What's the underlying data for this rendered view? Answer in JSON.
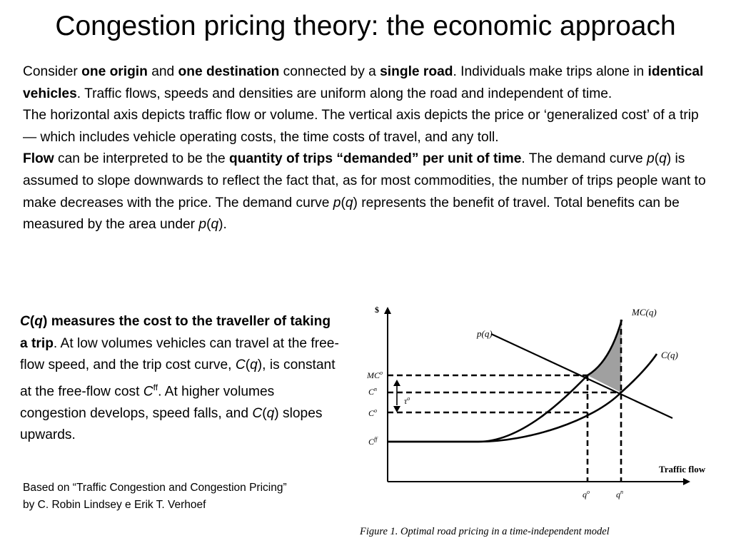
{
  "slide": {
    "title": "Congestion pricing theory: the economic approach",
    "intro": {
      "p1": {
        "t1": "Consider ",
        "b1": "one origin",
        "t2": " and ",
        "b2": "one destination",
        "t3": " connected by a ",
        "b3": "single road",
        "t4": ". Individuals make trips alone in ",
        "b4": "identical vehicles",
        "t5": ". Traffic flows, speeds and densities are uniform along the road and independent of time."
      },
      "p2": "The horizontal axis depicts traffic flow or volume. The vertical axis depicts the price or ‘generalized cost’ of a trip — which includes vehicle operating costs, the time costs of travel, and any toll.",
      "p3": {
        "b1": "Flow",
        "t1": " can be interpreted to be the ",
        "b2": "quantity of trips “demanded” per unit of time",
        "t2": ". The demand curve ",
        "i1": "p",
        "t3": "(",
        "i2": "q",
        "t4": ") is assumed to slope downwards to reflect the fact that, as for most commodities, the number of trips people want to make decreases with the price. The demand curve ",
        "i3": "p",
        "t5": "(",
        "i4": "q",
        "t6": ") represents the benefit of travel. Total benefits can be measured by the area under ",
        "i5": "p",
        "t7": "(",
        "i6": "q",
        "t8": ")."
      }
    },
    "left": {
      "bi1": "C",
      "b1": "(",
      "bi2": "q",
      "b2": ") measures the cost to the traveller of taking a trip",
      "t1": ". At low volumes vehicles can travel at the free-flow speed, and the trip cost curve, ",
      "i1": "C",
      "t2": "(",
      "i2": "q",
      "t3": "), is constant at the free-flow cost ",
      "i3": "C",
      "s1": "ff",
      "t4": ". At higher volumes congestion develops, speed falls, and ",
      "i4": "C",
      "t5": "(",
      "i5": "q",
      "t6": ") slopes upwards."
    },
    "source": "Based on “Traffic Congestion and Congestion Pricing” by C. Robin Lindsey e Erik T. Verhoef"
  },
  "figure": {
    "y_axis_label": "$",
    "x_axis_label": "Traffic flow",
    "demand_label": "p(q)",
    "mc_label": "MC(q)",
    "cost_label": "C(q)",
    "y_ticks": {
      "mco": "MC",
      "mco_sup": "o",
      "cn": "C",
      "cn_sup": "n",
      "co": "C",
      "co_sup": "o",
      "cff": "C",
      "cff_sup": "ff"
    },
    "toll_label": "τ",
    "toll_sup": "o",
    "x_ticks": {
      "qo": "q",
      "qo_sup": "o",
      "qn": "q",
      "qn_sup": "n"
    },
    "caption": "Figure 1. Optimal road pricing in a time-independent model",
    "shade_color": "#a0a0a0"
  }
}
